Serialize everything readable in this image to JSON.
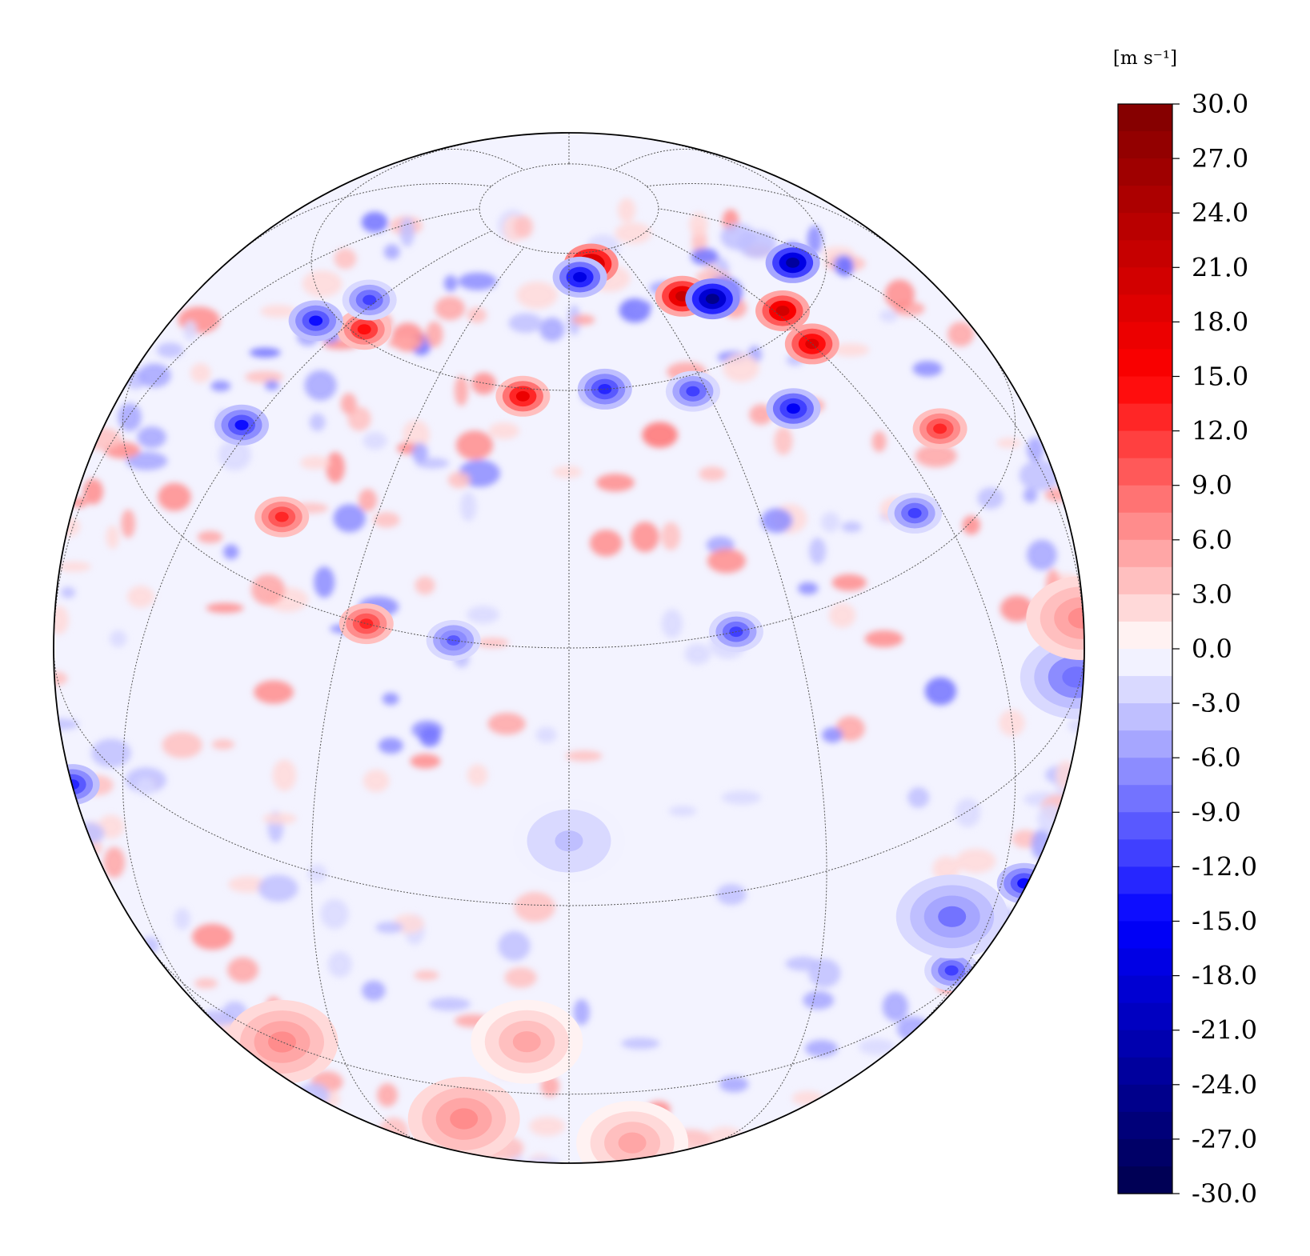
{
  "colorbar": {
    "unit_label": "[m s⁻¹]",
    "tick_labels": [
      "30.0",
      "27.0",
      "24.0",
      "21.0",
      "18.0",
      "15.0",
      "12.0",
      "9.0",
      "6.0",
      "3.0",
      "0.0",
      "-3.0",
      "-6.0",
      "-9.0",
      "-12.0",
      "-15.0",
      "-18.0",
      "-21.0",
      "-24.0",
      "-27.0",
      "-30.0"
    ],
    "vmin": -30.0,
    "vmax": 30.0,
    "levels_step": 1.5,
    "colormap": "seismic",
    "colors": {
      "negative_end": "#00004c",
      "mid": "#ffffff",
      "positive_end": "#7f0000",
      "blue": "#0000ff",
      "red": "#ff0000"
    }
  },
  "map": {
    "projection": "orthographic",
    "central_latitude_deg": 30,
    "graticule_latitudes_deg": [
      -60,
      -30,
      0,
      30,
      60,
      80
    ],
    "graticule_meridian_step_deg": 30,
    "graticule_style": "dotted"
  },
  "field_features": [
    {
      "lat": 78,
      "lon": 12,
      "value": 24
    },
    {
      "lat": 76,
      "lon": 5,
      "value": -18
    },
    {
      "lat": 70,
      "lon": 40,
      "value": 22
    },
    {
      "lat": 68,
      "lon": 48,
      "value": -25
    },
    {
      "lat": 62,
      "lon": 62,
      "value": 20
    },
    {
      "lat": 64,
      "lon": 82,
      "value": -24
    },
    {
      "lat": 57,
      "lon": 60,
      "value": 19
    },
    {
      "lat": 52,
      "lon": 45,
      "value": -16
    },
    {
      "lat": 61,
      "lon": -55,
      "value": 14
    },
    {
      "lat": 58,
      "lon": -68,
      "value": -14
    },
    {
      "lat": 64,
      "lon": -62,
      "value": -12
    },
    {
      "lat": 59,
      "lon": -10,
      "value": 17
    },
    {
      "lat": 60,
      "lon": 8,
      "value": -13
    },
    {
      "lat": 58,
      "lon": 27,
      "value": -12
    },
    {
      "lat": 44,
      "lon": -62,
      "value": -14
    },
    {
      "lat": 38,
      "lon": -45,
      "value": 13
    },
    {
      "lat": 30,
      "lon": -27,
      "value": 12
    },
    {
      "lat": 30,
      "lon": 22,
      "value": -12
    },
    {
      "lat": 30,
      "lon": -15,
      "value": -10
    },
    {
      "lat": 35,
      "lon": 55,
      "value": -11
    },
    {
      "lat": 40,
      "lon": 70,
      "value": 12
    },
    {
      "lat": -12,
      "lon": -80,
      "value": -13
    },
    {
      "lat": -20,
      "lon": 70,
      "value": -14
    },
    {
      "lat": -25,
      "lon": 55,
      "value": -12
    },
    {
      "lat": 2,
      "lon": 80,
      "value": -9
    },
    {
      "lat": -14,
      "lon": 50,
      "value": -8
    },
    {
      "lat": -20,
      "lon": -5,
      "value": 5
    },
    {
      "lat": -38,
      "lon": -15,
      "value": 7
    },
    {
      "lat": -30,
      "lon": -40,
      "value": 6
    },
    {
      "lat": -45,
      "lon": 10,
      "value": 5
    },
    {
      "lat": 5,
      "lon": 88,
      "value": 6
    },
    {
      "lat": 8,
      "lon": 0,
      "value": -4
    }
  ]
}
